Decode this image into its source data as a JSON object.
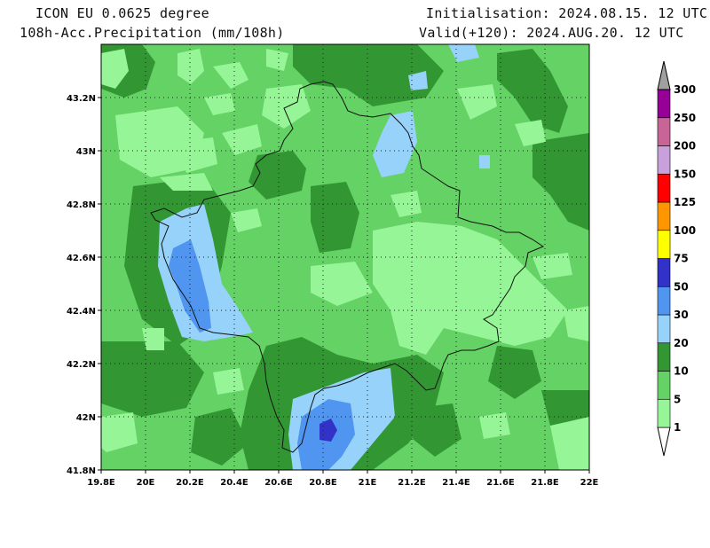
{
  "header": {
    "model": "ICON EU 0.0625 degree",
    "field": "108h-Acc.Precipitation (mm/108h)",
    "init": "Initialisation: 2024.08.15. 12 UTC",
    "valid": "Valid(+120): 2024.AUG.20. 12 UTC"
  },
  "map": {
    "lon_range": [
      19.8,
      22.0
    ],
    "lat_range": [
      41.8,
      43.4
    ],
    "x_ticks": [
      "19.8E",
      "20E",
      "20.2E",
      "20.4E",
      "20.6E",
      "20.8E",
      "21E",
      "21.2E",
      "21.4E",
      "21.6E",
      "21.8E",
      "22E"
    ],
    "y_ticks": [
      "41.8N",
      "42N",
      "42.2N",
      "42.4N",
      "42.6N",
      "42.8N",
      "43N",
      "43.2N"
    ],
    "grid": "dotted"
  },
  "legend": {
    "labels": [
      "1",
      "5",
      "10",
      "20",
      "30",
      "50",
      "75",
      "100",
      "125",
      "150",
      "200",
      "250",
      "300"
    ],
    "colors": [
      "#ffffff",
      "#96f596",
      "#64d264",
      "#329632",
      "#96d2fa",
      "#5096f0",
      "#3232c8",
      "#ffff00",
      "#ff9600",
      "#ff0000",
      "#c8a0dc",
      "#c86496",
      "#960096",
      "#a0a0a0"
    ]
  }
}
